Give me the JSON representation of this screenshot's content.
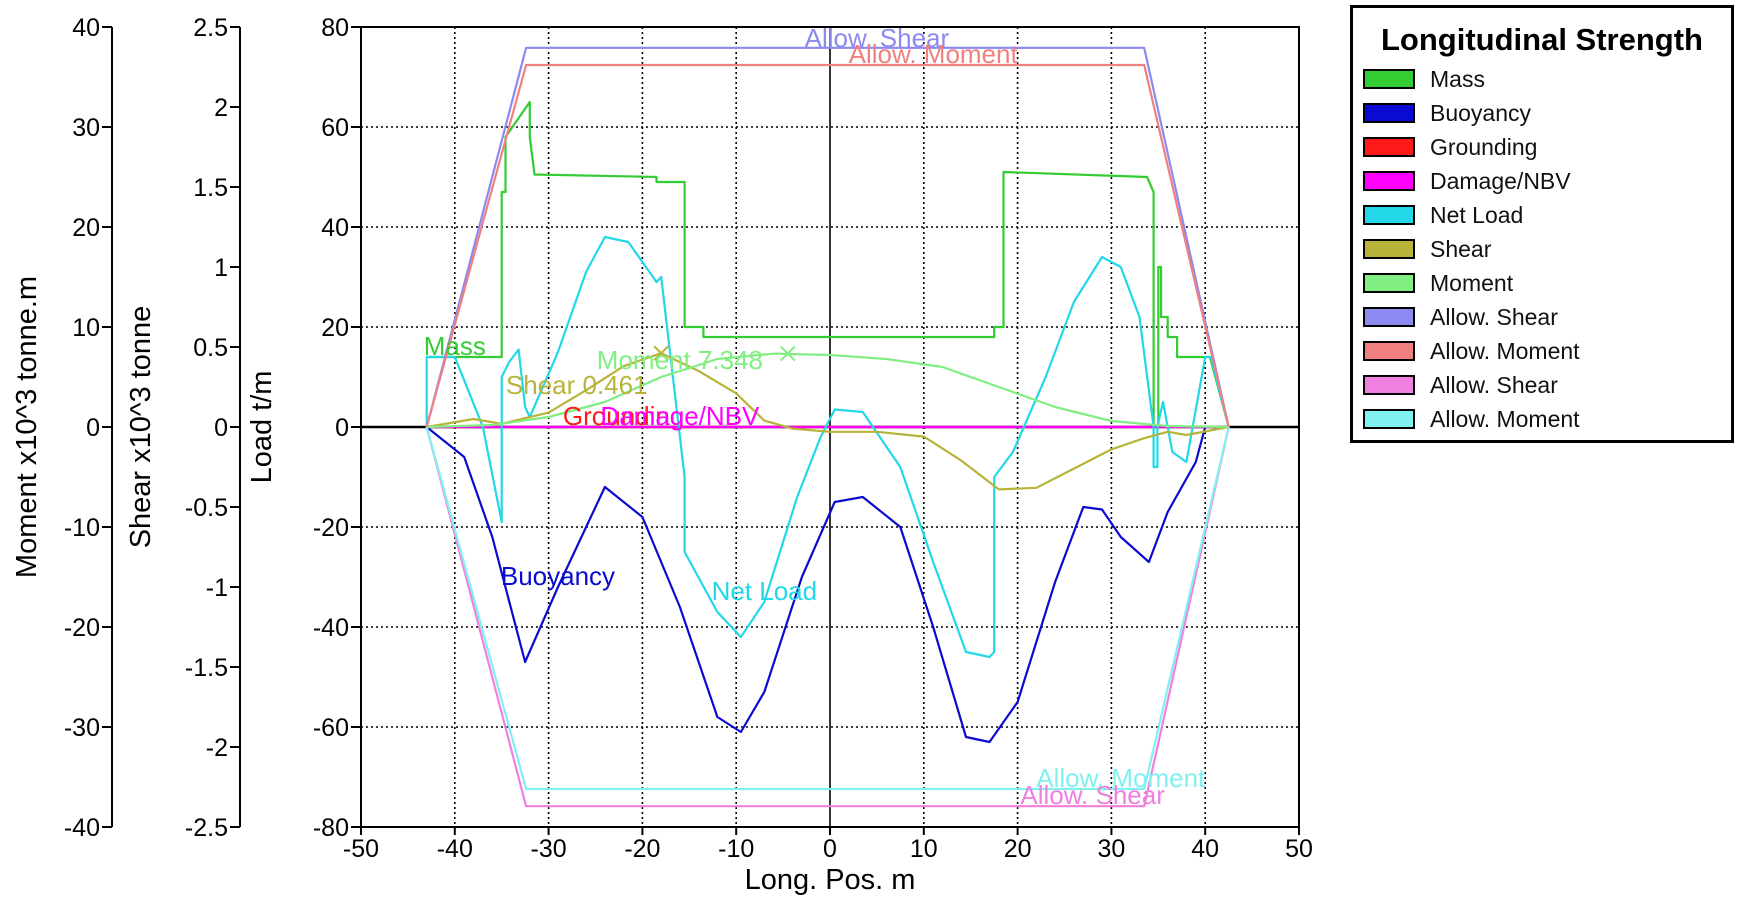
{
  "chart_data": {
    "type": "line",
    "title": "Longitudinal Strength",
    "xlabel": "Long. Pos.  m",
    "xlim": [
      -50,
      50
    ],
    "xticks": [
      -50,
      -40,
      -30,
      -20,
      -10,
      0,
      10,
      20,
      30,
      40,
      50
    ],
    "grid": true,
    "legend_position": "top-right",
    "y_axes": [
      {
        "id": "moment",
        "label": "Moment  x10^3 tonne.m",
        "ylim": [
          -40,
          40
        ],
        "ticks": [
          40,
          30,
          20,
          10,
          0,
          -10,
          -20,
          -30,
          -40
        ]
      },
      {
        "id": "shear",
        "label": "Shear  x10^3 tonne",
        "ylim": [
          -2.5,
          2.5
        ],
        "ticks": [
          2.5,
          2,
          1.5,
          1,
          0.5,
          0,
          -0.5,
          -1,
          -1.5,
          -2,
          -2.5
        ]
      },
      {
        "id": "load",
        "label": "Load  t/m",
        "ylim": [
          -80,
          80
        ],
        "ticks": [
          80,
          60,
          40,
          20,
          0,
          -20,
          -40,
          -60,
          -80
        ]
      }
    ],
    "series": [
      {
        "name": "Mass",
        "color": "#33cc33",
        "axis": "load",
        "label": "Mass",
        "label_x": -40,
        "x": [
          -43,
          -39,
          -35,
          -35,
          -34.6,
          -34.6,
          -32,
          -32,
          -31.5,
          -31.5,
          -18.5,
          -18.5,
          -15.5,
          -15.5,
          -13.5,
          -13.5,
          17.5,
          17.5,
          18.5,
          18.5,
          33.8,
          34.5,
          34.5,
          35,
          35,
          35.3,
          35.3,
          36,
          36,
          37,
          37,
          40.5,
          42.5
        ],
        "y": [
          14,
          14,
          14,
          47,
          47,
          58,
          65,
          58,
          50.5,
          50.5,
          50,
          49,
          49,
          20,
          20,
          18,
          18,
          20,
          20,
          51,
          50,
          47,
          0,
          0,
          32,
          32,
          22,
          22,
          18,
          18,
          14,
          14,
          0
        ]
      },
      {
        "name": "Buoyancy",
        "color": "#0a0ad0",
        "axis": "load",
        "label": "Buoyancy",
        "label_x": -29,
        "x": [
          -43,
          -39,
          -36,
          -32.5,
          -29,
          -24,
          -20,
          -16,
          -12,
          -9.5,
          -7,
          -3,
          0.5,
          3.5,
          7.5,
          11,
          14.5,
          17,
          20,
          24,
          27,
          29,
          31,
          34,
          36,
          39,
          40
        ],
        "y": [
          0,
          -6,
          -22,
          -47,
          -32,
          -12,
          -18,
          -36,
          -58,
          -61,
          -53,
          -30,
          -15,
          -14,
          -20,
          -40,
          -62,
          -63,
          -55,
          -31,
          -16,
          -16.5,
          -22,
          -27,
          -17,
          -7,
          0
        ]
      },
      {
        "name": "Grounding",
        "color": "#ff1a1a",
        "axis": "load",
        "label": "Grounding",
        "label_x": -22,
        "x": [
          -43,
          42.5
        ],
        "y": [
          0,
          0
        ]
      },
      {
        "name": "Damage/NBV",
        "color": "#ff00ff",
        "axis": "load",
        "label": "Damage/NBV",
        "label_x": -16,
        "x": [
          -43,
          42.5
        ],
        "y": [
          0,
          0
        ]
      },
      {
        "name": "Net Load",
        "color": "#22d8e8",
        "axis": "load",
        "label": "Net Load",
        "label_x": -7,
        "x": [
          -43,
          -43,
          -40,
          -37,
          -35,
          -35,
          -34.2,
          -33.2,
          -32.5,
          -32,
          -29,
          -26,
          -24,
          -21.5,
          -18.5,
          -18,
          -15.5,
          -15.5,
          -12,
          -9.5,
          -7,
          -3.5,
          -1,
          0.5,
          3.5,
          7.5,
          11,
          14.5,
          17,
          17.5,
          17.5,
          19.5,
          23,
          26,
          29,
          31,
          33,
          33,
          34.5,
          34.5,
          34.9,
          34.9,
          35.5,
          36.5,
          38,
          40,
          40.6,
          42.5
        ],
        "y": [
          0,
          14,
          14,
          0,
          -19,
          10,
          13,
          15.5,
          4,
          2,
          15,
          31,
          38,
          37,
          29,
          30,
          -10,
          -25,
          -37,
          -42,
          -35,
          -14,
          -2,
          3.5,
          3,
          -8,
          -27,
          -45,
          -46,
          -45,
          -10,
          -5,
          10,
          25,
          34,
          32,
          22,
          22,
          0,
          -8,
          -8,
          0,
          5,
          -5,
          -7,
          14,
          14,
          0
        ]
      },
      {
        "name": "Shear",
        "color": "#b8b43a",
        "axis": "shear",
        "label": "Shear  0.461",
        "label_x": -27,
        "marker": {
          "x": -18,
          "y": 0.461,
          "symbol": "x"
        },
        "x": [
          -43,
          -38,
          -35,
          -30,
          -26,
          -22,
          -18,
          -14,
          -10,
          -7,
          -4,
          0,
          5,
          10,
          14,
          18,
          22,
          26,
          30,
          33.5,
          36,
          38,
          42.5
        ],
        "y": [
          0,
          0.05,
          0.02,
          0.09,
          0.23,
          0.38,
          0.461,
          0.35,
          0.21,
          0.04,
          -0.01,
          -0.03,
          -0.03,
          -0.06,
          -0.21,
          -0.39,
          -0.38,
          -0.26,
          -0.14,
          -0.07,
          -0.03,
          -0.05,
          0
        ]
      },
      {
        "name": "Moment",
        "color": "#80ee80",
        "axis": "moment",
        "label": "Moment  7.348",
        "label_x": -16,
        "marker": {
          "x": -4.5,
          "y": 7.348,
          "symbol": "x"
        },
        "x": [
          -43,
          -36,
          -30,
          -24,
          -18,
          -12,
          -6,
          0,
          6,
          12,
          18,
          24,
          30,
          36,
          42.5
        ],
        "y": [
          0,
          0.2,
          1.0,
          2.5,
          5.0,
          6.8,
          7.34,
          7.2,
          6.8,
          6.0,
          4.0,
          2.0,
          0.6,
          0.1,
          0
        ]
      },
      {
        "name": "Allow. Shear",
        "color": "#8a8af0",
        "axis": "shear",
        "label": "Allow. Shear",
        "label_x": 5,
        "x": [
          -43,
          -32.4,
          33.5,
          42.5
        ],
        "y": [
          0,
          2.37,
          2.37,
          0
        ]
      },
      {
        "name": "Allow. Moment",
        "color": "#f08080",
        "axis": "moment",
        "label": "Allow. Moment",
        "label_x": 11,
        "x": [
          -43,
          -32.4,
          33.5,
          42.5
        ],
        "y": [
          0,
          36.2,
          36.2,
          0
        ]
      },
      {
        "name": "Allow. Shear",
        "color": "#f080e0",
        "axis": "shear",
        "label": "Allow. Shear",
        "label_x": 28,
        "x": [
          -43,
          -32.4,
          33.5,
          42.5
        ],
        "y": [
          0,
          -2.37,
          -2.37,
          0
        ]
      },
      {
        "name": "Allow. Moment",
        "color": "#80f0f0",
        "axis": "moment",
        "label": "Allow. Moment",
        "label_x": 31,
        "x": [
          -43,
          -32.4,
          33.5,
          42.5
        ],
        "y": [
          0,
          -36.2,
          -36.2,
          0
        ]
      }
    ]
  }
}
